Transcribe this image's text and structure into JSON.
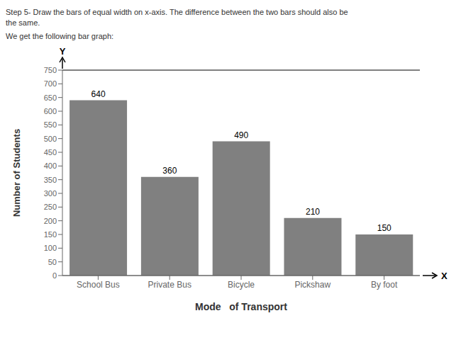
{
  "chart_data": {
    "type": "bar",
    "title": [
      "Step 5- Draw the bars of equal width on x-axis. The difference between the two bars should also be",
      "the same."
    ],
    "subtitle": "We get the following bar graph:",
    "categories": [
      "School Bus",
      "Private Bus",
      "Bicycle",
      "Pickshaw",
      "By foot"
    ],
    "values": [
      640,
      360,
      490,
      210,
      150
    ],
    "color": "#808080",
    "ylim": [
      0,
      750
    ],
    "yticks": [
      0,
      50,
      100,
      150,
      200,
      250,
      300,
      350,
      400,
      450,
      500,
      550,
      600,
      650,
      700,
      750
    ],
    "xlabel": "Mode   of Transport",
    "ylabel": "Number of Students",
    "annotations": [
      "Y",
      "X"
    ],
    "data_labels": true,
    "grid": false
  }
}
